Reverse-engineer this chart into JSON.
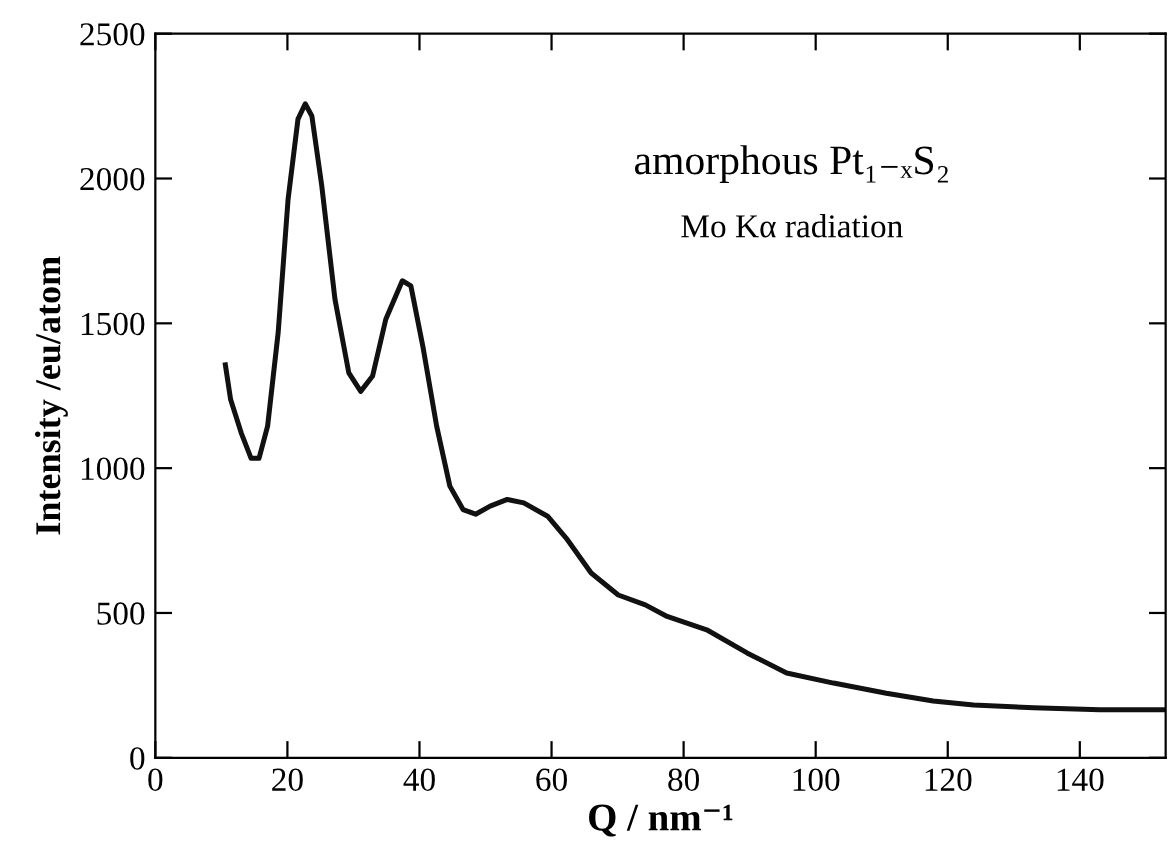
{
  "chart_data": {
    "type": "line",
    "xlabel": "Q / nm⁻¹",
    "ylabel": "Intensity /eu/atom",
    "annotations": [
      "amorphous Pt₁₋ₓS₂",
      "Mo Kα radiation"
    ],
    "x": [
      10.6,
      11.4,
      13.0,
      14.5,
      15.7,
      17.0,
      18.6,
      20.1,
      21.6,
      22.7,
      23.7,
      25.2,
      27.2,
      29.3,
      31.1,
      32.9,
      34.9,
      37.4,
      38.7,
      40.5,
      42.6,
      44.6,
      46.6,
      48.5,
      50.7,
      53.3,
      55.8,
      59.4,
      62.4,
      66.0,
      70.1,
      74.2,
      77.5,
      83.5,
      89.6,
      95.6,
      102.7,
      110.7,
      117.8,
      123.9,
      133.0,
      143.0,
      152.6
    ],
    "values": [
      1357,
      1237,
      1122,
      1034,
      1034,
      1145,
      1468,
      1928,
      2205,
      2258,
      2216,
      1975,
      1583,
      1329,
      1265,
      1318,
      1514,
      1647,
      1629,
      1422,
      1145,
      938,
      857,
      841,
      869,
      892,
      880,
      834,
      753,
      638,
      562,
      528,
      488,
      442,
      362,
      293,
      258,
      223,
      196,
      182,
      173,
      166,
      166
    ],
    "color": "#111111",
    "xlim": [
      0,
      153
    ],
    "ylim": [
      0,
      2500
    ],
    "xticks": [
      0,
      20,
      40,
      60,
      80,
      100,
      120,
      140
    ],
    "yticks": [
      0,
      500,
      1000,
      1500,
      2000,
      2500
    ]
  }
}
